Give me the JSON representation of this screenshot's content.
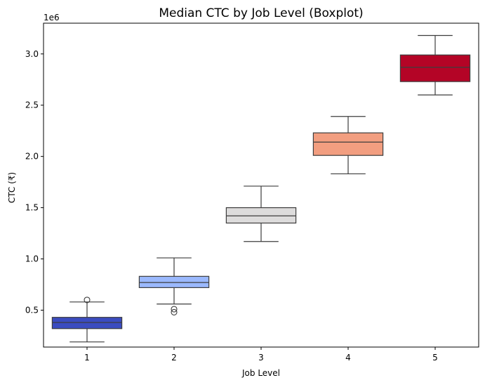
{
  "chart_data": {
    "type": "boxplot",
    "title": "Median CTC by Job Level (Boxplot)",
    "xlabel": "Job Level",
    "ylabel": "CTC (₹)",
    "y_offset_label": "1e6",
    "ylim": [
      0.14,
      3.3
    ],
    "y_ticks": [
      "0.5",
      "1.0",
      "1.5",
      "2.0",
      "2.5",
      "3.0"
    ],
    "y_tick_values": [
      0.5,
      1.0,
      1.5,
      2.0,
      2.5,
      3.0
    ],
    "grid": false,
    "categories": [
      "1",
      "2",
      "3",
      "4",
      "5"
    ],
    "boxes": [
      {
        "category": "1",
        "whisker_low": 0.19,
        "q1": 0.32,
        "median": 0.38,
        "q3": 0.43,
        "whisker_high": 0.58,
        "outliers": [
          0.6
        ],
        "color": "#3b4cc0"
      },
      {
        "category": "2",
        "whisker_low": 0.56,
        "q1": 0.72,
        "median": 0.77,
        "q3": 0.83,
        "whisker_high": 1.01,
        "outliers": [
          0.51,
          0.48
        ],
        "color": "#9bb9fe"
      },
      {
        "category": "3",
        "whisker_low": 1.17,
        "q1": 1.35,
        "median": 1.42,
        "q3": 1.5,
        "whisker_high": 1.71,
        "outliers": [],
        "color": "#dddcdc"
      },
      {
        "category": "4",
        "whisker_low": 1.83,
        "q1": 2.01,
        "median": 2.14,
        "q3": 2.23,
        "whisker_high": 2.39,
        "outliers": [],
        "color": "#f29e80"
      },
      {
        "category": "5",
        "whisker_low": 2.6,
        "q1": 2.73,
        "median": 2.87,
        "q3": 2.99,
        "whisker_high": 3.18,
        "outliers": [],
        "color": "#b40426"
      }
    ]
  }
}
